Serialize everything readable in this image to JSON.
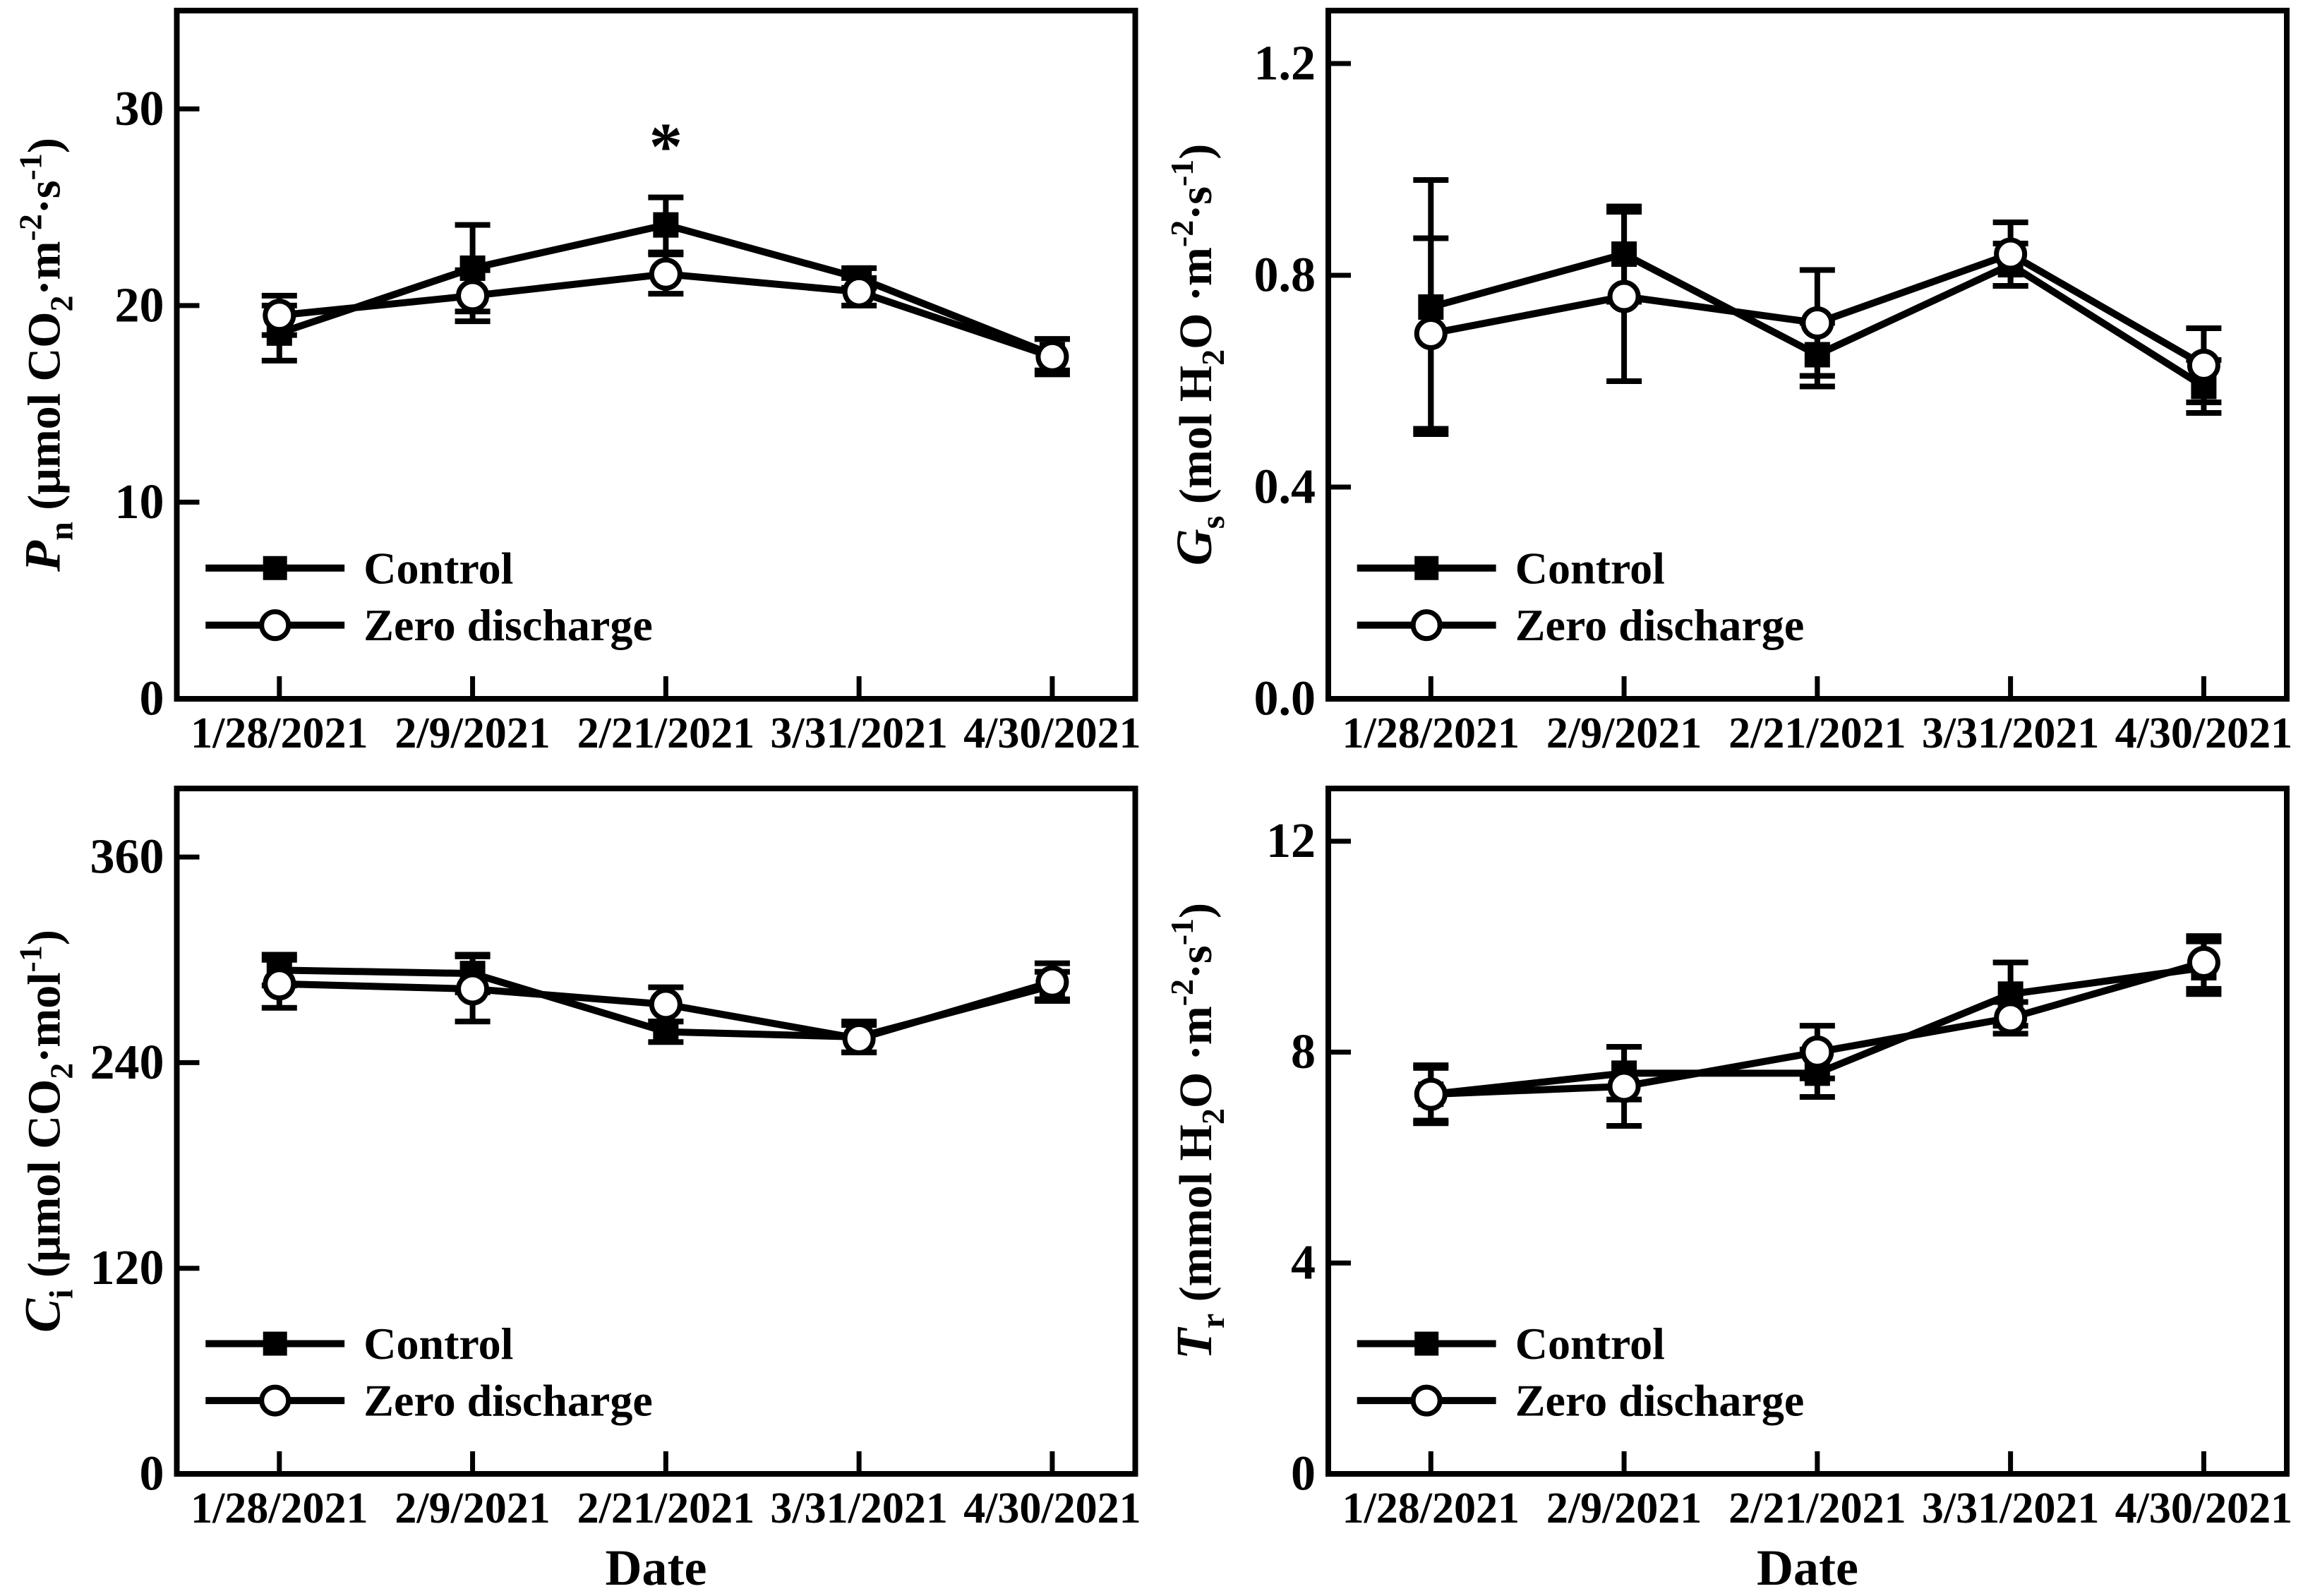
{
  "page": {
    "background": "#ffffff",
    "ink": "#000000"
  },
  "categories": [
    "1/28/2021",
    "2/9/2021",
    "2/21/2021",
    "3/31/2021",
    "4/30/2021"
  ],
  "legend": {
    "control_label": "Control",
    "zero_label": "Zero discharge"
  },
  "xlabel": "Date",
  "significance_marker": "*",
  "chart_data": [
    {
      "id": "pn",
      "type": "line",
      "row": "top",
      "title": "",
      "xlabel": "",
      "ylabel": {
        "sym": "P",
        "sym_sub": "n",
        "unit_parts": [
          [
            " (μmol CO",
            "n"
          ],
          [
            "2",
            "b"
          ],
          [
            "·m",
            "n"
          ],
          [
            "-2",
            "p"
          ],
          [
            "·s",
            "n"
          ],
          [
            "-1",
            "p"
          ],
          [
            ")",
            "n"
          ]
        ]
      },
      "categories": [
        "1/28/2021",
        "2/9/2021",
        "2/21/2021",
        "3/31/2021",
        "4/30/2021"
      ],
      "ylim": [
        0,
        35
      ],
      "yticks": [
        0,
        10,
        20,
        30
      ],
      "ytick_labels": [
        "0",
        "10",
        "20",
        "30"
      ],
      "grid": false,
      "legend_position": "lower-left",
      "series": [
        {
          "name": "Control",
          "marker": "square",
          "values": [
            18.6,
            21.9,
            24.1,
            21.4,
            17.5
          ],
          "errors": [
            1.4,
            2.2,
            1.4,
            0.5,
            0.8
          ]
        },
        {
          "name": "Zero discharge",
          "marker": "circle",
          "values": [
            19.5,
            20.5,
            21.6,
            20.7,
            17.4
          ],
          "errors": [
            1.0,
            1.3,
            1.0,
            0.7,
            0.9
          ]
        }
      ],
      "annotations": [
        {
          "text": "*",
          "series": 0,
          "point": 2
        }
      ]
    },
    {
      "id": "gs",
      "type": "line",
      "row": "top",
      "title": "",
      "xlabel": "",
      "ylabel": {
        "sym": "G",
        "sym_sub": "s",
        "unit_parts": [
          [
            " (mol H",
            "n"
          ],
          [
            "2",
            "b"
          ],
          [
            "O ·m",
            "n"
          ],
          [
            "-2",
            "p"
          ],
          [
            "·s",
            "n"
          ],
          [
            "-1",
            "p"
          ],
          [
            ")",
            "n"
          ]
        ]
      },
      "categories": [
        "1/28/2021",
        "2/9/2021",
        "2/21/2021",
        "3/31/2021",
        "4/30/2021"
      ],
      "ylim": [
        0,
        1.3
      ],
      "yticks": [
        0,
        0.4,
        0.8,
        1.2
      ],
      "ytick_labels": [
        "0.0",
        "0.4",
        "0.8",
        "1.2"
      ],
      "grid": false,
      "legend_position": "lower-left",
      "series": [
        {
          "name": "Control",
          "marker": "square",
          "values": [
            0.74,
            0.84,
            0.65,
            0.82,
            0.59
          ],
          "errors": [
            0.24,
            0.09,
            0.06,
            0.04,
            0.05
          ]
        },
        {
          "name": "Zero discharge",
          "marker": "circle",
          "values": [
            0.69,
            0.76,
            0.71,
            0.84,
            0.63
          ],
          "errors": [
            0.18,
            0.16,
            0.1,
            0.06,
            0.07
          ]
        }
      ],
      "annotations": []
    },
    {
      "id": "ci",
      "type": "line",
      "row": "bottom",
      "title": "",
      "xlabel": "Date",
      "ylabel": {
        "sym": "C",
        "sym_sub": "i",
        "unit_parts": [
          [
            " (μmol CO",
            "n"
          ],
          [
            "2",
            "b"
          ],
          [
            "·mol",
            "n"
          ],
          [
            "-1",
            "p"
          ],
          [
            ")",
            "n"
          ]
        ]
      },
      "categories": [
        "1/28/2021",
        "2/9/2021",
        "2/21/2021",
        "3/31/2021",
        "4/30/2021"
      ],
      "ylim": [
        0,
        400
      ],
      "yticks": [
        0,
        120,
        240,
        360
      ],
      "ytick_labels": [
        "0",
        "120",
        "240",
        "360"
      ],
      "grid": false,
      "legend_position": "lower-left",
      "series": [
        {
          "name": "Control",
          "marker": "square",
          "values": [
            294,
            292,
            258,
            255,
            285
          ],
          "errors": [
            9,
            11,
            6,
            9,
            8
          ]
        },
        {
          "name": "Zero discharge",
          "marker": "circle",
          "values": [
            286,
            283,
            274,
            254,
            287
          ],
          "errors": [
            14,
            19,
            10,
            8,
            11
          ]
        }
      ],
      "annotations": []
    },
    {
      "id": "tr",
      "type": "line",
      "row": "bottom",
      "title": "",
      "xlabel": "Date",
      "ylabel": {
        "sym": "T",
        "sym_sub": "r",
        "unit_parts": [
          [
            " (mmol H",
            "n"
          ],
          [
            "2",
            "b"
          ],
          [
            "O ·m",
            "n"
          ],
          [
            "-2",
            "p"
          ],
          [
            "·s",
            "n"
          ],
          [
            "-1",
            "p"
          ],
          [
            ")",
            "n"
          ]
        ]
      },
      "categories": [
        "1/28/2021",
        "2/9/2021",
        "2/21/2021",
        "3/31/2021",
        "4/30/2021"
      ],
      "ylim": [
        0,
        13
      ],
      "yticks": [
        0,
        4,
        8,
        12
      ],
      "ytick_labels": [
        "0",
        "4",
        "8",
        "12"
      ],
      "grid": false,
      "legend_position": "lower-left",
      "series": [
        {
          "name": "Control",
          "marker": "square",
          "values": [
            7.2,
            7.6,
            7.6,
            9.1,
            9.6
          ],
          "errors": [
            0.55,
            0.5,
            0.45,
            0.6,
            0.5
          ]
        },
        {
          "name": "Zero discharge",
          "marker": "circle",
          "values": [
            7.2,
            7.35,
            8.0,
            8.65,
            9.7
          ],
          "errors": [
            0.5,
            0.75,
            0.5,
            0.3,
            0.5
          ]
        }
      ],
      "annotations": []
    }
  ]
}
